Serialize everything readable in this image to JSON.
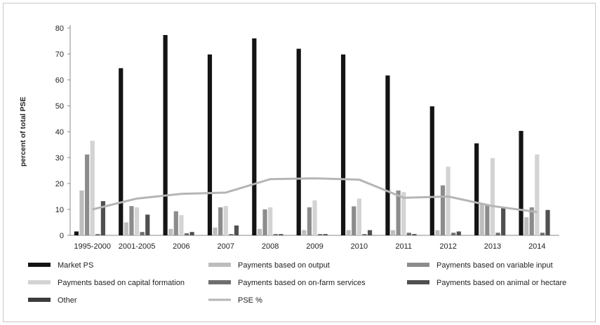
{
  "chart_data": {
    "type": "bar",
    "ylabel": "percent of total PSE",
    "ylim": [
      0,
      80
    ],
    "yticks": [
      0,
      10,
      20,
      30,
      40,
      50,
      60,
      70,
      80
    ],
    "categories": [
      "1995-2000",
      "2001-2005",
      "2006",
      "2007",
      "2008",
      "2009",
      "2010",
      "2011",
      "2012",
      "2013",
      "2014"
    ],
    "series": [
      {
        "name": "Market PS",
        "type": "bar",
        "color": "#141414",
        "values": [
          1.5,
          64.5,
          77.3,
          69.8,
          76.0,
          72.0,
          69.8,
          61.7,
          49.8,
          35.5,
          40.3
        ]
      },
      {
        "name": "Payments based on output",
        "type": "bar",
        "color": "#bdbdbd",
        "values": [
          17.3,
          5.0,
          2.5,
          3.0,
          2.5,
          2.0,
          2.0,
          2.0,
          2.0,
          12.5,
          7.0
        ]
      },
      {
        "name": "Payments based on variable input",
        "type": "bar",
        "color": "#8c8c8c",
        "values": [
          31.2,
          11.3,
          9.3,
          10.8,
          10.0,
          10.8,
          11.2,
          17.3,
          19.3,
          12.0,
          10.8
        ]
      },
      {
        "name": "Payments based on capital formation",
        "type": "bar",
        "color": "#d3d3d3",
        "values": [
          36.5,
          10.8,
          7.8,
          11.3,
          10.8,
          13.5,
          14.2,
          16.7,
          26.5,
          29.8,
          31.2
        ]
      },
      {
        "name": "Payments based on on-farm services",
        "type": "bar",
        "color": "#6e6e6e",
        "values": [
          0.5,
          1.3,
          0.8,
          0.5,
          0.5,
          0.5,
          0.5,
          1.0,
          1.0,
          1.0,
          1.0
        ]
      },
      {
        "name": "Payments based on animal or hectare",
        "type": "bar",
        "color": "#505050",
        "values": [
          13.2,
          8.0,
          1.3,
          3.8,
          0.5,
          0.5,
          2.0,
          0.5,
          1.5,
          10.5,
          9.8
        ]
      },
      {
        "name": "Other",
        "type": "bar",
        "color": "#3c3c3c",
        "values": [
          0,
          0,
          0,
          0,
          0,
          0,
          0,
          0,
          0,
          0,
          0
        ]
      },
      {
        "name": "PSE %",
        "type": "line",
        "color": "#b5b5b5",
        "values": [
          10.0,
          14.2,
          16.0,
          16.5,
          21.7,
          22.0,
          21.5,
          14.5,
          15.0,
          11.3,
          9.0
        ]
      }
    ],
    "legend_position": "bottom",
    "grid": false
  }
}
